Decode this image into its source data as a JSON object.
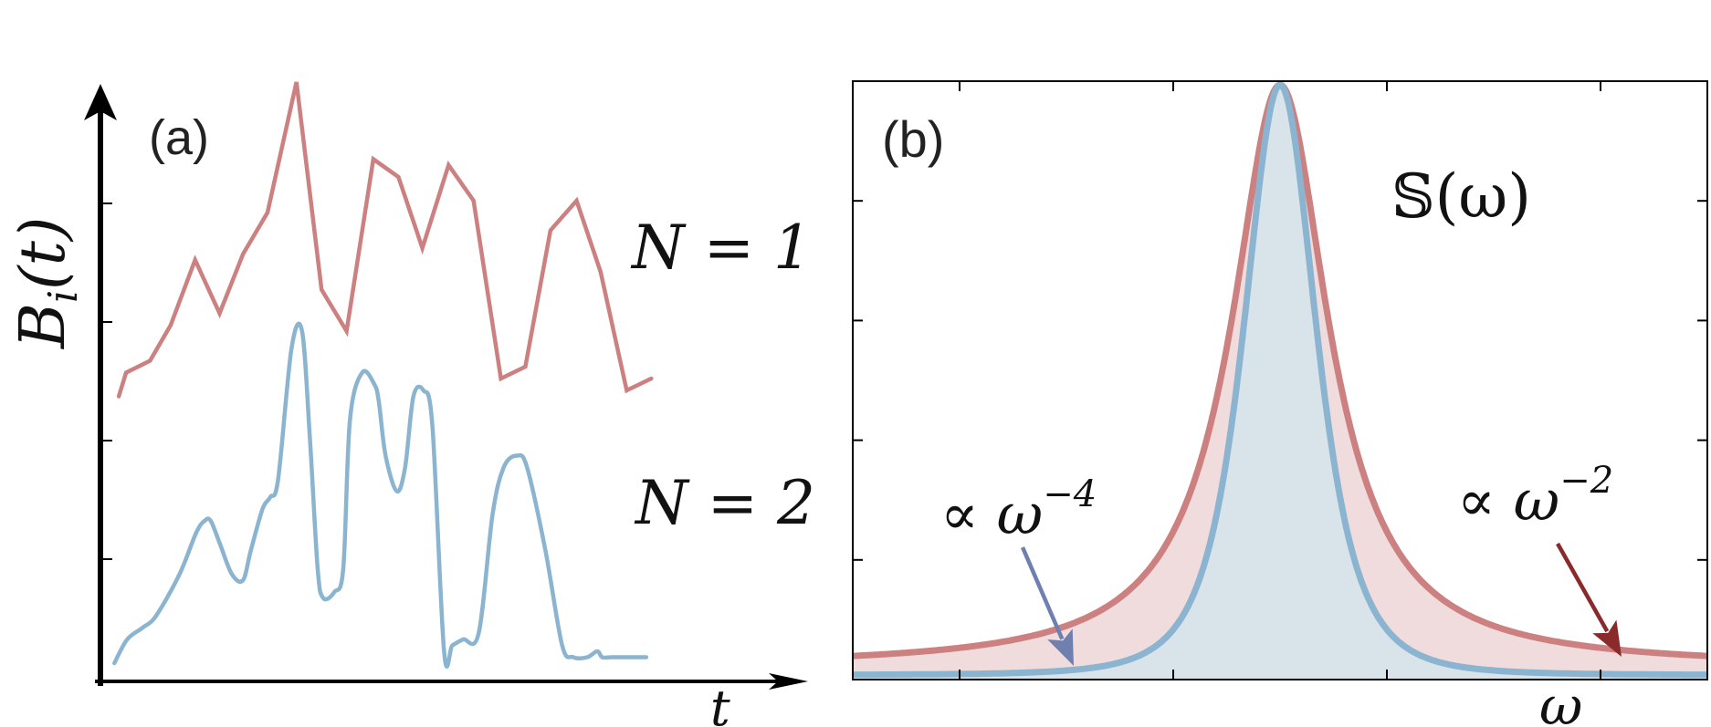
{
  "panel_a": {
    "label": "(a)",
    "ylabel": "B",
    "ylabel_sub": "i",
    "ylabel_arg": "(t)",
    "xlabel": "t",
    "series_labels": [
      "N = 1",
      "N = 2"
    ]
  },
  "panel_b": {
    "label": "(b)",
    "curve_label": "𝕊(ω)",
    "xlabel": "ω",
    "annotations": [
      {
        "text": "∝ ω",
        "exp": "−4",
        "target": "N = 2 tail"
      },
      {
        "text": "∝ ω",
        "exp": "−2",
        "target": "N = 1 tail"
      }
    ]
  },
  "colors": {
    "n1": "#cc8080",
    "n2": "#8ab4d0",
    "n1_fill": "#f0dcdc",
    "n2_fill": "#d8e3ea",
    "arrow_n2": "#6f7fb0",
    "arrow_n1": "#8b2a2a",
    "axis": "#000000"
  },
  "chart_data": [
    {
      "type": "line",
      "panel": "(a)",
      "xlabel": "t",
      "ylabel": "B_i(t)",
      "xlim": [
        0,
        1
      ],
      "ylim": [
        0,
        1
      ],
      "series": [
        {
          "name": "N = 1",
          "style": "piecewise-linear",
          "x": [
            0.033,
            0.046,
            0.089,
            0.126,
            0.17,
            0.214,
            0.256,
            0.3,
            0.352,
            0.397,
            0.442,
            0.49,
            0.535,
            0.578,
            0.625,
            0.67,
            0.719,
            0.763,
            0.808,
            0.855,
            0.898,
            0.945,
            0.989
          ],
          "y": [
            0.47,
            0.51,
            0.53,
            0.59,
            0.7,
            0.61,
            0.71,
            0.78,
            1.0,
            0.65,
            0.58,
            0.87,
            0.84,
            0.72,
            0.86,
            0.8,
            0.5,
            0.52,
            0.75,
            0.8,
            0.68,
            0.48,
            0.5
          ]
        },
        {
          "name": "N = 2",
          "style": "smooth",
          "x": [
            0.025,
            0.048,
            0.076,
            0.1,
            0.142,
            0.172,
            0.187,
            0.198,
            0.215,
            0.236,
            0.256,
            0.27,
            0.291,
            0.305,
            0.319,
            0.343,
            0.362,
            0.376,
            0.39,
            0.4,
            0.42,
            0.436,
            0.448,
            0.47,
            0.492,
            0.5,
            0.512,
            0.532,
            0.547,
            0.562,
            0.58,
            0.596,
            0.617,
            0.632,
            0.651,
            0.679,
            0.704,
            0.724,
            0.748,
            0.766,
            0.799,
            0.829,
            0.849,
            0.874,
            0.892,
            0.901,
            0.918,
            0.938,
            0.954,
            0.97,
            0.98
          ],
          "y": [
            0.02,
            0.06,
            0.08,
            0.1,
            0.17,
            0.24,
            0.26,
            0.26,
            0.22,
            0.17,
            0.16,
            0.21,
            0.28,
            0.3,
            0.33,
            0.55,
            0.58,
            0.4,
            0.18,
            0.13,
            0.14,
            0.18,
            0.43,
            0.51,
            0.49,
            0.46,
            0.37,
            0.31,
            0.35,
            0.47,
            0.48,
            0.42,
            0.04,
            0.05,
            0.06,
            0.07,
            0.27,
            0.35,
            0.37,
            0.35,
            0.21,
            0.05,
            0.03,
            0.03,
            0.04,
            0.03,
            0.03,
            0.03,
            0.03,
            0.03,
            0.03
          ]
        }
      ]
    },
    {
      "type": "area",
      "panel": "(b)",
      "xlabel": "ω",
      "ylabel": "𝕊(ω)",
      "xlim": [
        -4,
        4
      ],
      "ylim": [
        0,
        1
      ],
      "series": [
        {
          "name": "N = 1",
          "form": "Lorentzian, tail ∝ ω^−2",
          "gamma": 0.55
        },
        {
          "name": "N = 2",
          "form": "tail ∝ ω^−4",
          "gamma": 0.62
        }
      ]
    }
  ]
}
